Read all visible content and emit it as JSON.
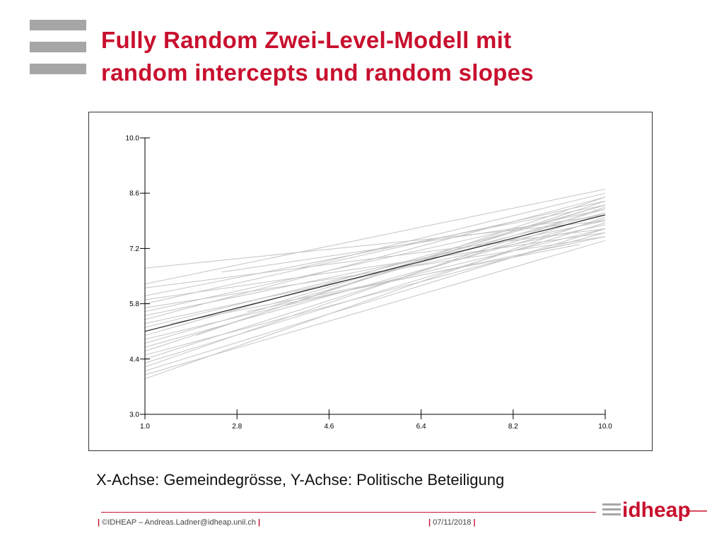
{
  "slide": {
    "title_line1": "Fully Random Zwei-Level-Modell mit",
    "title_line2": "random intercepts und random slopes",
    "caption": "X-Achse: Gemeindegrösse, Y-Achse: Politische Beteiligung",
    "footer_left": "©IDHEAP – Andreas.Ladner@idheap.unil.ch",
    "footer_date": "07/11/2018",
    "footer_separator": "|",
    "logo_text": "idheap",
    "accent_color": "#c8102e"
  },
  "chart_data": {
    "type": "line",
    "title": "",
    "xlabel": "",
    "ylabel": "",
    "xlim": [
      1.0,
      10.0
    ],
    "ylim": [
      3.0,
      10.0
    ],
    "xticks": [
      "1.0",
      "2.8",
      "4.6",
      "6.4",
      "8.2",
      "10.0"
    ],
    "yticks": [
      "3.0",
      "4.4",
      "5.8",
      "7.2",
      "8.6",
      "10.0"
    ],
    "grid": false,
    "series": [
      {
        "role": "fixed",
        "color": "#222222",
        "x": [
          1.0,
          10.0
        ],
        "y": [
          5.1,
          8.05
        ]
      },
      {
        "role": "random",
        "color": "#c4c4c4",
        "x": [
          1.0,
          10.0
        ],
        "y": [
          6.7,
          7.9
        ]
      },
      {
        "role": "random",
        "color": "#c4c4c4",
        "x": [
          1.0,
          10.0
        ],
        "y": [
          6.3,
          8.7
        ]
      },
      {
        "role": "random",
        "color": "#c4c4c4",
        "x": [
          1.0,
          10.0
        ],
        "y": [
          6.2,
          7.7
        ]
      },
      {
        "role": "random",
        "color": "#c4c4c4",
        "x": [
          1.0,
          10.0
        ],
        "y": [
          6.0,
          8.3
        ]
      },
      {
        "role": "random",
        "color": "#c4c4c4",
        "x": [
          1.0,
          10.0
        ],
        "y": [
          5.9,
          7.6
        ]
      },
      {
        "role": "random",
        "color": "#c4c4c4",
        "x": [
          1.0,
          10.0
        ],
        "y": [
          5.8,
          8.4
        ]
      },
      {
        "role": "random",
        "color": "#c4c4c4",
        "x": [
          1.0,
          10.0
        ],
        "y": [
          5.7,
          7.5
        ]
      },
      {
        "role": "random",
        "color": "#c4c4c4",
        "x": [
          1.0,
          10.0
        ],
        "y": [
          5.6,
          8.2
        ]
      },
      {
        "role": "random",
        "color": "#c4c4c4",
        "x": [
          1.0,
          10.0
        ],
        "y": [
          5.5,
          7.9
        ]
      },
      {
        "role": "random",
        "color": "#c4c4c4",
        "x": [
          1.0,
          10.0
        ],
        "y": [
          5.4,
          8.5
        ]
      },
      {
        "role": "random",
        "color": "#c4c4c4",
        "x": [
          1.0,
          10.0
        ],
        "y": [
          5.3,
          7.8
        ]
      },
      {
        "role": "random",
        "color": "#c4c4c4",
        "x": [
          1.0,
          10.0
        ],
        "y": [
          5.2,
          8.1
        ]
      },
      {
        "role": "random",
        "color": "#c4c4c4",
        "x": [
          1.0,
          10.0
        ],
        "y": [
          5.0,
          8.3
        ]
      },
      {
        "role": "random",
        "color": "#c4c4c4",
        "x": [
          1.0,
          10.0
        ],
        "y": [
          4.9,
          7.7
        ]
      },
      {
        "role": "random",
        "color": "#c4c4c4",
        "x": [
          1.0,
          10.0
        ],
        "y": [
          4.8,
          8.2
        ]
      },
      {
        "role": "random",
        "color": "#c4c4c4",
        "x": [
          1.0,
          10.0
        ],
        "y": [
          4.7,
          7.95
        ]
      },
      {
        "role": "random",
        "color": "#c4c4c4",
        "x": [
          1.0,
          10.0
        ],
        "y": [
          4.6,
          8.4
        ]
      },
      {
        "role": "random",
        "color": "#c4c4c4",
        "x": [
          1.0,
          10.0
        ],
        "y": [
          4.5,
          7.6
        ]
      },
      {
        "role": "random",
        "color": "#c4c4c4",
        "x": [
          1.0,
          10.0
        ],
        "y": [
          4.4,
          8.1
        ]
      },
      {
        "role": "random",
        "color": "#c4c4c4",
        "x": [
          1.0,
          10.0
        ],
        "y": [
          4.3,
          7.85
        ]
      },
      {
        "role": "random",
        "color": "#c4c4c4",
        "x": [
          1.0,
          10.0
        ],
        "y": [
          4.2,
          8.25
        ]
      },
      {
        "role": "random",
        "color": "#c4c4c4",
        "x": [
          1.0,
          10.0
        ],
        "y": [
          4.1,
          7.7
        ]
      },
      {
        "role": "random",
        "color": "#c4c4c4",
        "x": [
          1.0,
          10.0
        ],
        "y": [
          4.0,
          7.4
        ]
      },
      {
        "role": "random",
        "color": "#c4c4c4",
        "x": [
          1.0,
          10.0
        ],
        "y": [
          3.9,
          8.0
        ]
      },
      {
        "role": "random",
        "color": "#c4c4c4",
        "x": [
          2.5,
          10.0
        ],
        "y": [
          6.6,
          8.05
        ]
      },
      {
        "role": "random",
        "color": "#c4c4c4",
        "x": [
          2.0,
          10.0
        ],
        "y": [
          5.0,
          8.5
        ]
      },
      {
        "role": "random",
        "color": "#c4c4c4",
        "x": [
          3.0,
          10.0
        ],
        "y": [
          5.6,
          7.5
        ]
      },
      {
        "role": "random",
        "color": "#c4c4c4",
        "x": [
          4.0,
          10.0
        ],
        "y": [
          6.7,
          8.6
        ]
      },
      {
        "role": "random",
        "color": "#c4c4c4",
        "x": [
          1.5,
          9.5
        ],
        "y": [
          5.3,
          7.3
        ]
      },
      {
        "role": "random",
        "color": "#c4c4c4",
        "x": [
          3.5,
          10.0
        ],
        "y": [
          5.8,
          8.3
        ]
      }
    ]
  }
}
